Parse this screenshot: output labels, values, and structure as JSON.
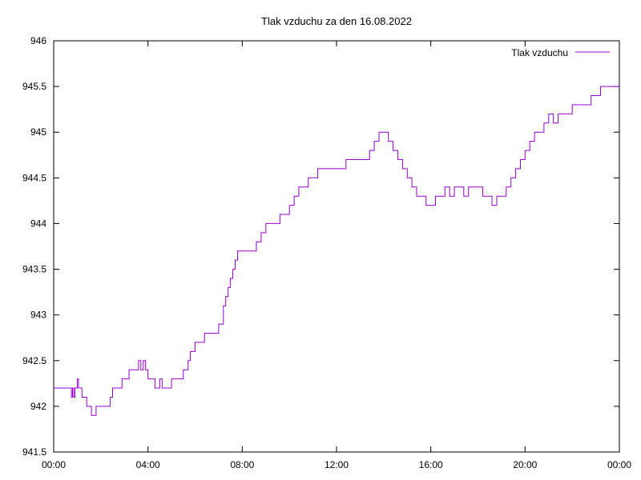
{
  "chart_data": {
    "type": "line",
    "title": "Tlak vzduchu za den 16.08.2022",
    "xlabel": "",
    "ylabel": "",
    "xlim": [
      0,
      24
    ],
    "ylim": [
      941.5,
      946
    ],
    "x_ticks": [
      {
        "value": 0,
        "label": "00:00"
      },
      {
        "value": 4,
        "label": "04:00"
      },
      {
        "value": 8,
        "label": "08:00"
      },
      {
        "value": 12,
        "label": "12:00"
      },
      {
        "value": 16,
        "label": "16:00"
      },
      {
        "value": 20,
        "label": "20:00"
      },
      {
        "value": 24,
        "label": "00:00"
      }
    ],
    "y_ticks": [
      {
        "value": 941.5,
        "label": "941.5"
      },
      {
        "value": 942,
        "label": "942"
      },
      {
        "value": 942.5,
        "label": "942.5"
      },
      {
        "value": 943,
        "label": "943"
      },
      {
        "value": 943.5,
        "label": "943.5"
      },
      {
        "value": 944,
        "label": "944"
      },
      {
        "value": 944.5,
        "label": "944.5"
      },
      {
        "value": 945,
        "label": "945"
      },
      {
        "value": 945.5,
        "label": "945.5"
      },
      {
        "value": 946,
        "label": "946"
      }
    ],
    "grid": false,
    "legend_position": "top-right",
    "series": [
      {
        "name": "Tlak vzduchu",
        "color": "#9400d3",
        "x": [
          0,
          0.5,
          0.75,
          0.8,
          0.85,
          0.9,
          0.95,
          1.0,
          1.05,
          1.1,
          1.2,
          1.3,
          1.4,
          1.5,
          1.6,
          1.7,
          1.8,
          1.9,
          2.0,
          2.2,
          2.4,
          2.5,
          2.6,
          2.7,
          2.8,
          2.9,
          3.0,
          3.2,
          3.3,
          3.4,
          3.5,
          3.6,
          3.7,
          3.8,
          3.9,
          4.0,
          4.2,
          4.3,
          4.4,
          4.5,
          4.6,
          4.8,
          5.0,
          5.2,
          5.4,
          5.5,
          5.6,
          5.7,
          5.8,
          6.0,
          6.2,
          6.4,
          6.6,
          6.8,
          7.0,
          7.2,
          7.3,
          7.4,
          7.5,
          7.6,
          7.7,
          7.8,
          8.0,
          8.2,
          8.4,
          8.6,
          8.8,
          9.0,
          9.2,
          9.4,
          9.6,
          9.8,
          10.0,
          10.2,
          10.4,
          10.6,
          10.8,
          11.0,
          11.2,
          11.4,
          11.6,
          11.8,
          12.0,
          12.2,
          12.4,
          12.6,
          12.8,
          13.0,
          13.2,
          13.4,
          13.6,
          13.8,
          14.0,
          14.2,
          14.4,
          14.6,
          14.8,
          15.0,
          15.2,
          15.4,
          15.6,
          15.8,
          16.0,
          16.2,
          16.4,
          16.6,
          16.8,
          17.0,
          17.2,
          17.4,
          17.6,
          17.8,
          18.0,
          18.2,
          18.4,
          18.6,
          18.8,
          19.0,
          19.2,
          19.4,
          19.6,
          19.8,
          20.0,
          20.2,
          20.4,
          20.6,
          20.8,
          21.0,
          21.2,
          21.4,
          21.6,
          21.8,
          22.0,
          22.2,
          22.4,
          22.6,
          22.8,
          23.0,
          23.2,
          23.4,
          23.6,
          23.8,
          24.0
        ],
        "values": [
          942.2,
          942.2,
          942.1,
          942.2,
          942.1,
          942.2,
          942.2,
          942.3,
          942.2,
          942.2,
          942.1,
          942.1,
          942.0,
          942.0,
          941.9,
          941.9,
          942.0,
          942.0,
          942.0,
          942.0,
          942.1,
          942.2,
          942.2,
          942.2,
          942.2,
          942.3,
          942.3,
          942.4,
          942.4,
          942.4,
          942.4,
          942.5,
          942.4,
          942.5,
          942.4,
          942.3,
          942.3,
          942.2,
          942.2,
          942.3,
          942.2,
          942.2,
          942.3,
          942.3,
          942.3,
          942.4,
          942.4,
          942.5,
          942.6,
          942.7,
          942.7,
          942.8,
          942.8,
          942.8,
          942.9,
          943.1,
          943.2,
          943.3,
          943.4,
          943.5,
          943.6,
          943.7,
          943.7,
          943.7,
          943.7,
          943.8,
          943.9,
          944.0,
          944.0,
          944.0,
          944.1,
          944.1,
          944.2,
          944.3,
          944.4,
          944.4,
          944.5,
          944.5,
          944.6,
          944.6,
          944.6,
          944.6,
          944.6,
          944.6,
          944.7,
          944.7,
          944.7,
          944.7,
          944.7,
          944.8,
          944.9,
          945.0,
          945.0,
          944.9,
          944.8,
          944.7,
          944.6,
          944.5,
          944.4,
          944.3,
          944.3,
          944.2,
          944.2,
          944.3,
          944.3,
          944.4,
          944.3,
          944.4,
          944.4,
          944.3,
          944.4,
          944.4,
          944.4,
          944.3,
          944.3,
          944.2,
          944.3,
          944.3,
          944.4,
          944.5,
          944.6,
          944.7,
          944.8,
          944.9,
          945.0,
          945.0,
          945.1,
          945.2,
          945.1,
          945.2,
          945.2,
          945.2,
          945.3,
          945.3,
          945.3,
          945.3,
          945.4,
          945.4,
          945.5,
          945.5,
          945.5,
          945.5,
          945.5
        ]
      }
    ]
  }
}
